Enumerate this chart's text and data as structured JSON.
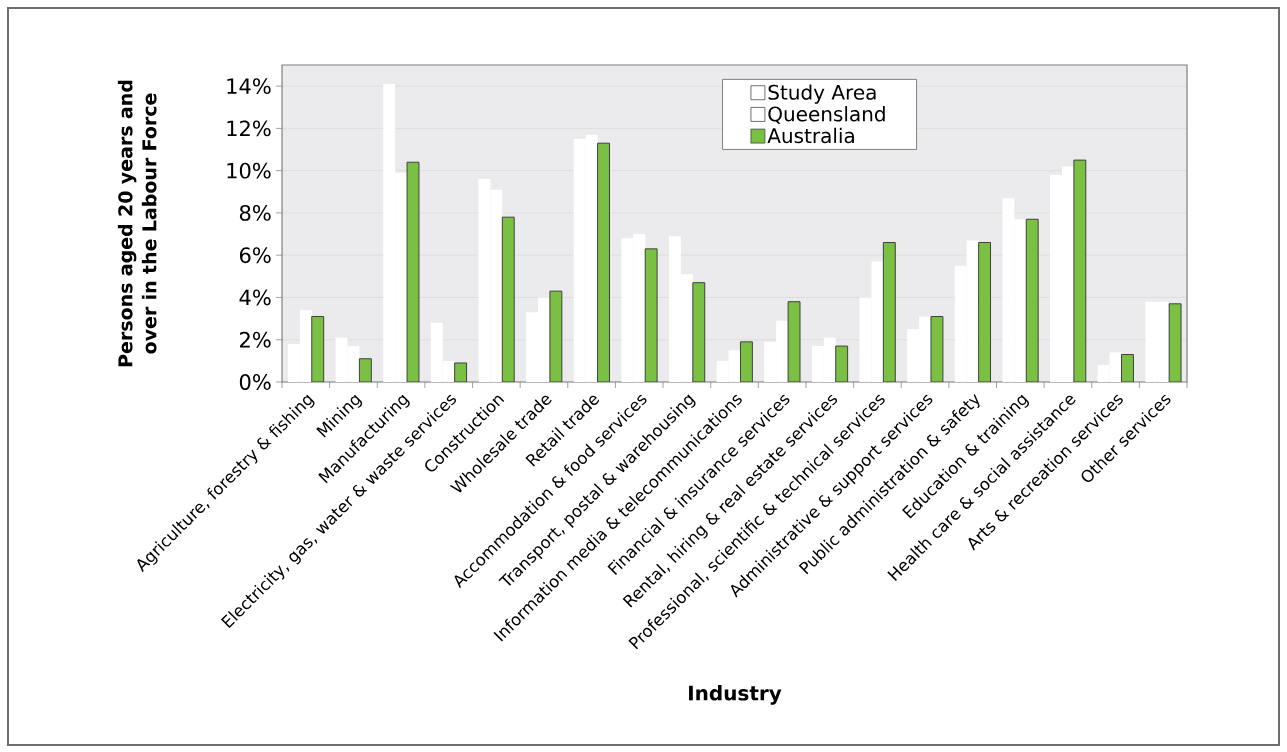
{
  "chart_data": {
    "type": "bar",
    "xlabel": "Industry",
    "ylabel": "Persons aged 20 years and over in the Labour Force",
    "categories": [
      "Agriculture, forestry & fishing",
      "Mining",
      "Manufacturing",
      "Electricity, gas, water & waste services",
      "Construction",
      "Wholesale trade",
      "Retail trade",
      "Accommodation & food services",
      "Transport, postal & warehousing",
      "Information media & telecommunications",
      "Financial & insurance services",
      "Rental, hiring & real estate services",
      "Professional, scientific & technical services",
      "Administrative & support services",
      "Public administration & safety",
      "Education & training",
      "Health care & social assistance",
      "Arts & recreation services",
      "Other services"
    ],
    "series": [
      {
        "name": "Study Area",
        "color": "#ffffff",
        "values": [
          1.8,
          2.1,
          14.1,
          2.8,
          9.6,
          3.3,
          11.5,
          6.8,
          6.9,
          1.0,
          1.9,
          1.7,
          4.0,
          2.5,
          5.5,
          8.7,
          9.8,
          0.8,
          3.8
        ]
      },
      {
        "name": "Queensland",
        "color": "#ffffff",
        "values": [
          3.4,
          1.7,
          9.9,
          1.0,
          9.1,
          4.0,
          11.7,
          7.0,
          5.1,
          1.5,
          2.9,
          2.1,
          5.7,
          3.1,
          6.7,
          7.7,
          10.2,
          1.4,
          3.8
        ]
      },
      {
        "name": "Australia",
        "color": "#7ac143",
        "values": [
          3.1,
          1.1,
          10.4,
          0.9,
          7.8,
          4.3,
          11.3,
          6.3,
          4.7,
          1.9,
          3.8,
          1.7,
          6.6,
          3.1,
          6.6,
          7.7,
          10.5,
          1.3,
          3.7
        ]
      }
    ],
    "ylim": [
      0,
      15
    ],
    "yticks": [
      {
        "value": 0,
        "label": "0%"
      },
      {
        "value": 2,
        "label": "2%"
      },
      {
        "value": 4,
        "label": "4%"
      },
      {
        "value": 6,
        "label": "6%"
      },
      {
        "value": 8,
        "label": "8%"
      },
      {
        "value": 10,
        "label": "10%"
      },
      {
        "value": 12,
        "label": "12%"
      },
      {
        "value": 14,
        "label": "14%"
      }
    ],
    "grid": "y",
    "legend": "top"
  }
}
